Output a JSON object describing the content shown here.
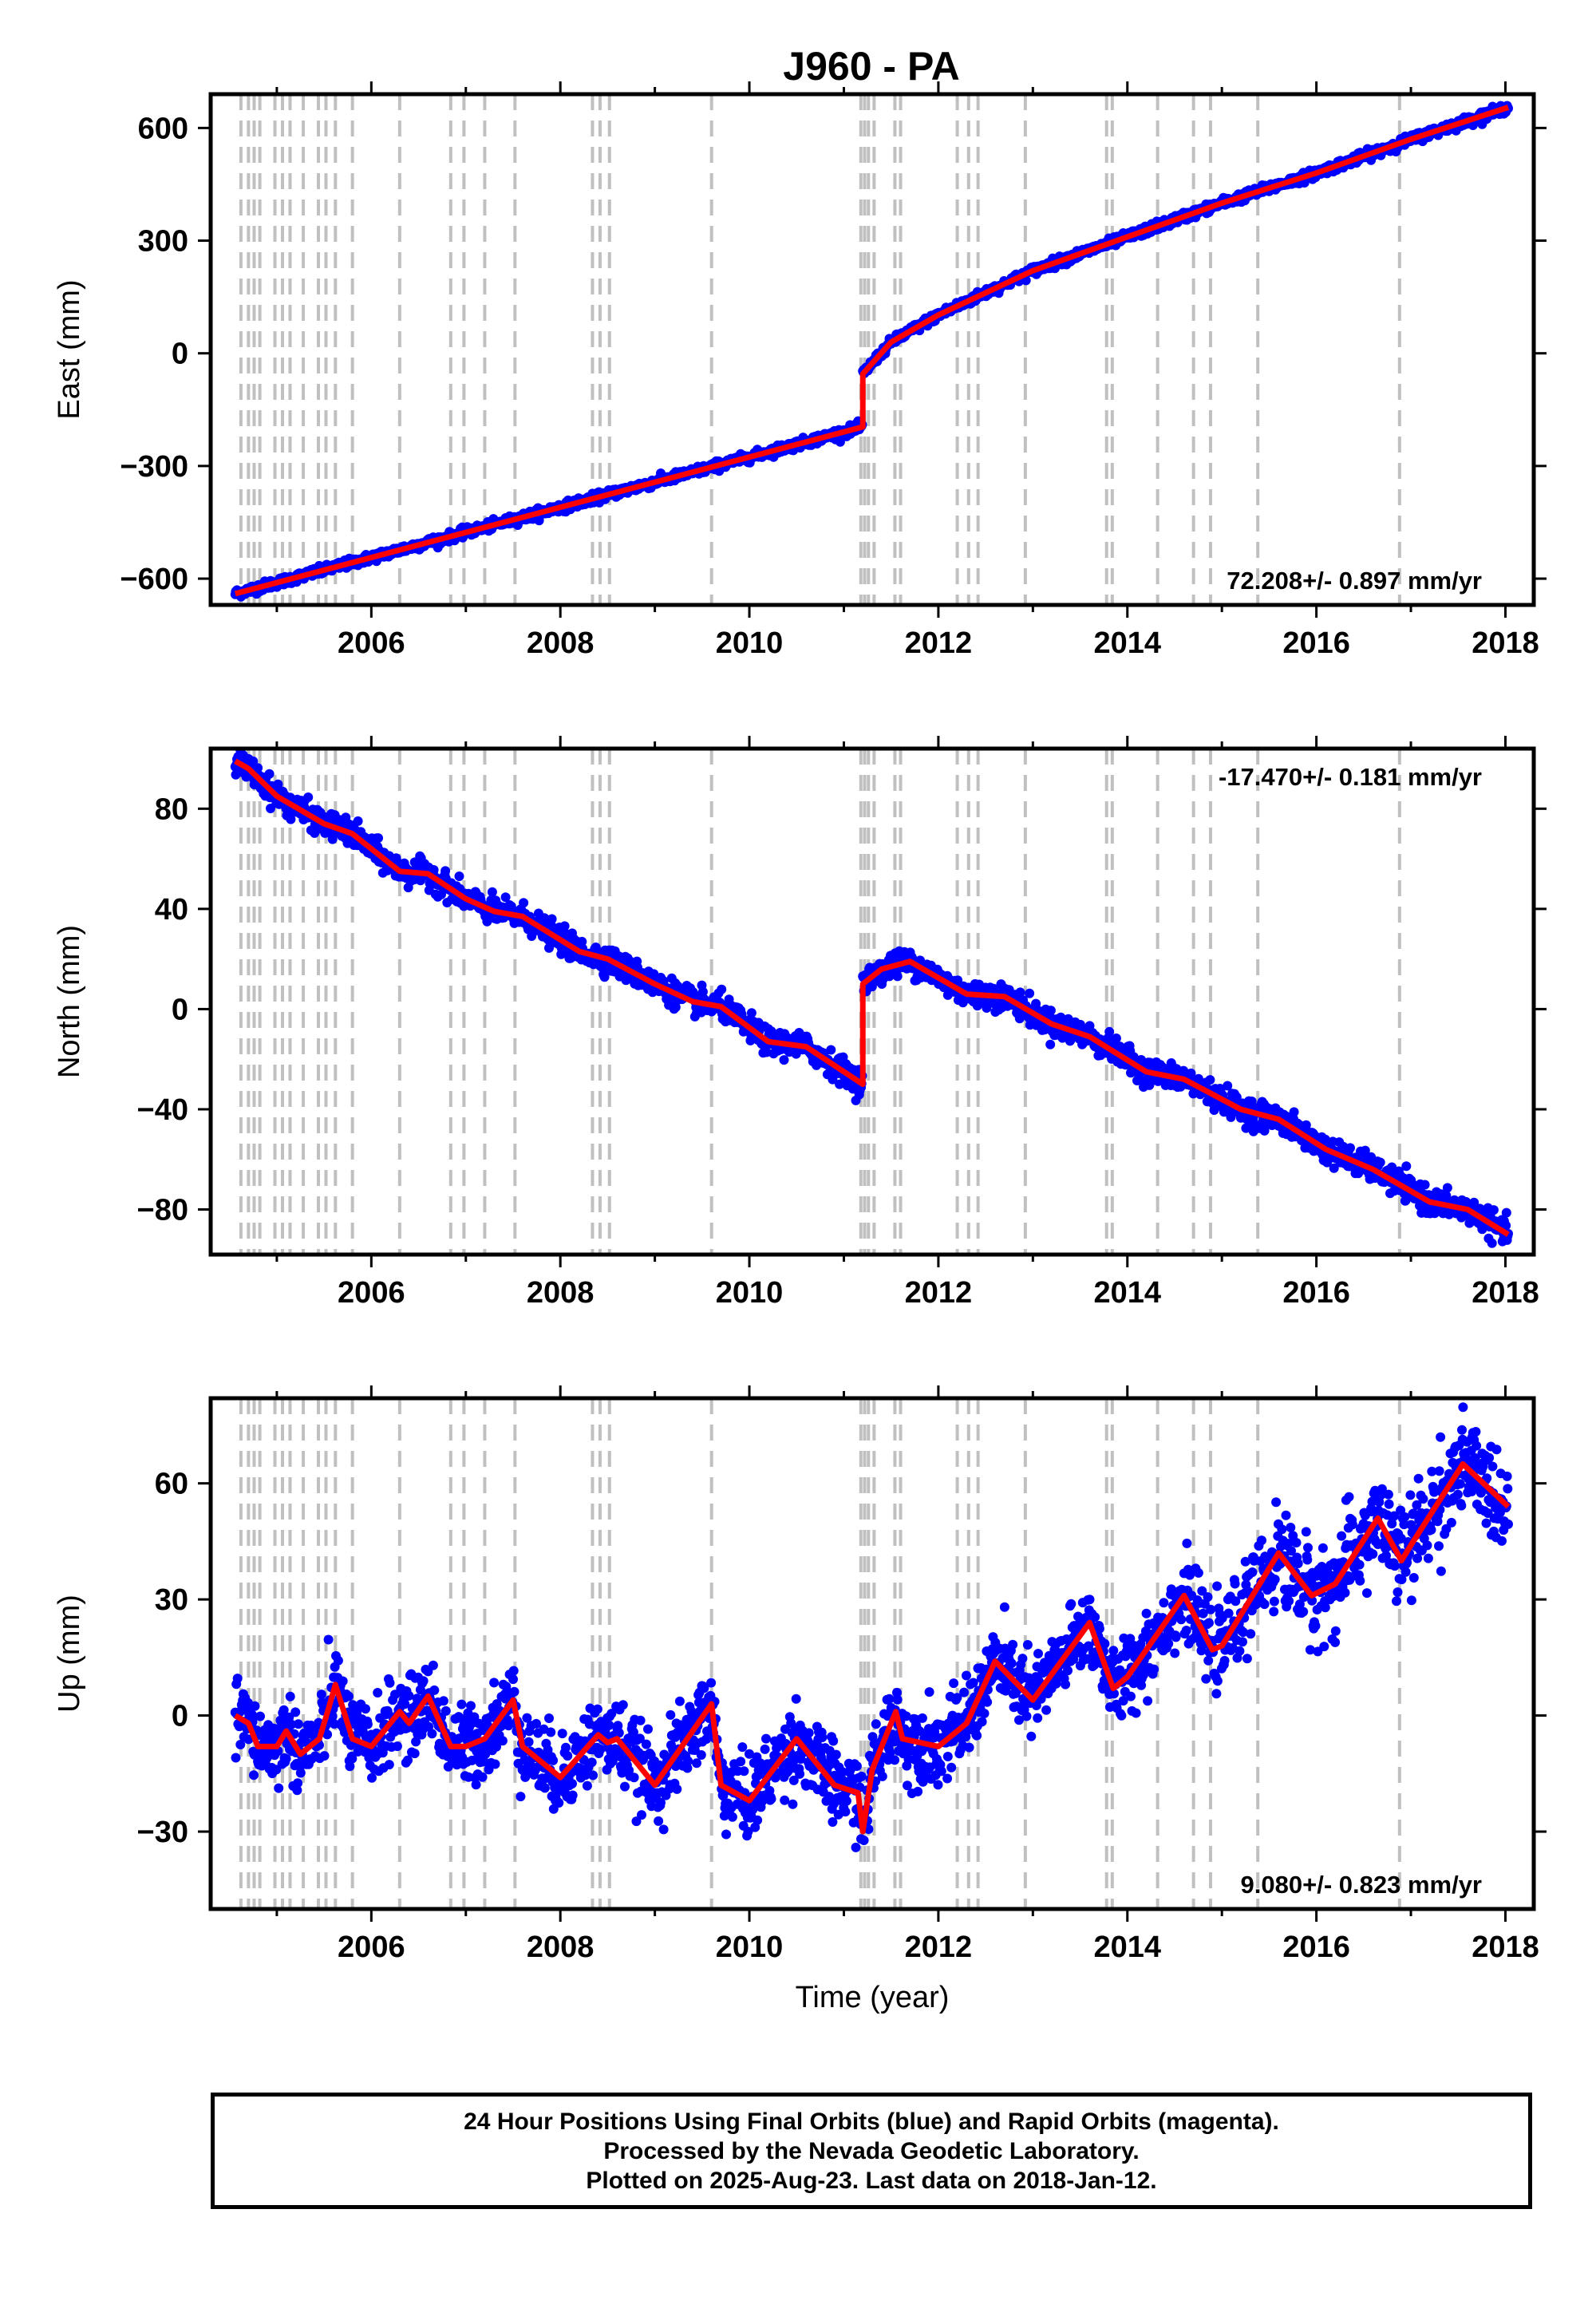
{
  "chart_data": {
    "type": "scatter",
    "title": "J960 - PA",
    "xlabel": "Time (year)",
    "x_range": [
      2004.3,
      2018.3
    ],
    "x_ticks": [
      2006,
      2008,
      2010,
      2012,
      2014,
      2016,
      2018
    ],
    "data_x_range": [
      2004.56,
      2018.03
    ],
    "colors": {
      "observations": "#0000ff",
      "model": "#ff0000",
      "events": "#c0c0c0"
    },
    "event_lines": [
      2004.62,
      2004.7,
      2004.76,
      2004.82,
      2004.98,
      2005.06,
      2005.14,
      2005.28,
      2005.44,
      2005.52,
      2005.62,
      2005.8,
      2006.3,
      2006.84,
      2006.98,
      2007.2,
      2007.52,
      2008.34,
      2008.42,
      2008.52,
      2009.6,
      2011.18,
      2011.22,
      2011.26,
      2011.32,
      2011.54,
      2011.6,
      2012.2,
      2012.32,
      2012.42,
      2012.92,
      2013.78,
      2013.84,
      2014.32,
      2014.7,
      2014.88,
      2015.38,
      2016.88
    ],
    "panels": [
      {
        "name": "east",
        "ylabel": "East (mm)",
        "ylim": [
          -670,
          690
        ],
        "y_ticks": [
          -600,
          -300,
          0,
          300,
          600
        ],
        "rate_text": "72.208+/- 0.897 mm/yr",
        "rate_position": "bottom-right",
        "model_line": [
          [
            2004.56,
            -640
          ],
          [
            2011.2,
            -196
          ],
          [
            2011.2,
            -55
          ],
          [
            2011.5,
            30
          ],
          [
            2012.0,
            102
          ],
          [
            2013.0,
            220
          ],
          [
            2014.0,
            310
          ],
          [
            2015.0,
            400
          ],
          [
            2016.0,
            480
          ],
          [
            2017.0,
            570
          ],
          [
            2018.03,
            655
          ]
        ],
        "scatter_noise_mm": 6
      },
      {
        "name": "north",
        "ylabel": "North (mm)",
        "ylim": [
          -98,
          104
        ],
        "y_ticks": [
          -80,
          -40,
          0,
          40,
          80
        ],
        "rate_text": "-17.470+/- 0.181 mm/yr",
        "rate_position": "top-right",
        "model_line": [
          [
            2004.56,
            99
          ],
          [
            2004.7,
            96
          ],
          [
            2005.0,
            85
          ],
          [
            2005.5,
            74
          ],
          [
            2005.8,
            70
          ],
          [
            2006.3,
            55
          ],
          [
            2006.6,
            54
          ],
          [
            2007.0,
            44
          ],
          [
            2007.3,
            39
          ],
          [
            2007.6,
            37
          ],
          [
            2008.2,
            23
          ],
          [
            2008.5,
            20
          ],
          [
            2009.0,
            10
          ],
          [
            2009.4,
            3
          ],
          [
            2009.7,
            1
          ],
          [
            2010.2,
            -13
          ],
          [
            2010.6,
            -15
          ],
          [
            2011.2,
            -30
          ],
          [
            2011.2,
            10
          ],
          [
            2011.4,
            16
          ],
          [
            2011.7,
            19
          ],
          [
            2012.3,
            6
          ],
          [
            2012.7,
            5
          ],
          [
            2013.2,
            -6
          ],
          [
            2013.6,
            -11
          ],
          [
            2014.2,
            -25
          ],
          [
            2014.6,
            -28
          ],
          [
            2015.2,
            -40
          ],
          [
            2015.6,
            -44
          ],
          [
            2016.1,
            -56
          ],
          [
            2016.6,
            -64
          ],
          [
            2017.2,
            -77
          ],
          [
            2017.6,
            -80
          ],
          [
            2018.03,
            -90
          ]
        ],
        "scatter_noise_mm": 2.5
      },
      {
        "name": "up",
        "ylabel": "Up (mm)",
        "ylim": [
          -50,
          82
        ],
        "y_ticks": [
          -30,
          0,
          30,
          60
        ],
        "rate_text": "9.080+/- 0.823 mm/yr",
        "rate_position": "bottom-right",
        "model_line": [
          [
            2004.56,
            0
          ],
          [
            2004.7,
            -2
          ],
          [
            2004.8,
            -8
          ],
          [
            2005.0,
            -8
          ],
          [
            2005.1,
            -4
          ],
          [
            2005.25,
            -10
          ],
          [
            2005.45,
            -6
          ],
          [
            2005.55,
            2
          ],
          [
            2005.62,
            8
          ],
          [
            2005.8,
            -6
          ],
          [
            2006.0,
            -8
          ],
          [
            2006.3,
            1
          ],
          [
            2006.4,
            -2
          ],
          [
            2006.6,
            5
          ],
          [
            2006.84,
            -8
          ],
          [
            2007.0,
            -8
          ],
          [
            2007.2,
            -6
          ],
          [
            2007.5,
            4
          ],
          [
            2007.6,
            -8
          ],
          [
            2008.0,
            -16
          ],
          [
            2008.4,
            -5
          ],
          [
            2008.5,
            -7
          ],
          [
            2008.6,
            -6
          ],
          [
            2009.0,
            -18
          ],
          [
            2009.6,
            3
          ],
          [
            2009.7,
            -18
          ],
          [
            2010.0,
            -22
          ],
          [
            2010.5,
            -6
          ],
          [
            2010.9,
            -18
          ],
          [
            2011.15,
            -20
          ],
          [
            2011.2,
            -30
          ],
          [
            2011.3,
            -14
          ],
          [
            2011.55,
            1
          ],
          [
            2011.62,
            -6
          ],
          [
            2012.0,
            -8
          ],
          [
            2012.3,
            -2
          ],
          [
            2012.6,
            14
          ],
          [
            2013.0,
            4
          ],
          [
            2013.6,
            24
          ],
          [
            2013.85,
            7
          ],
          [
            2014.0,
            10
          ],
          [
            2014.6,
            31
          ],
          [
            2014.9,
            17
          ],
          [
            2015.0,
            18
          ],
          [
            2015.6,
            42
          ],
          [
            2015.95,
            31
          ],
          [
            2016.2,
            34
          ],
          [
            2016.65,
            51
          ],
          [
            2016.9,
            40
          ],
          [
            2017.0,
            44
          ],
          [
            2017.55,
            65
          ],
          [
            2018.03,
            54
          ]
        ],
        "scatter_noise_mm": 5
      }
    ]
  },
  "caption": {
    "line1": "24 Hour Positions Using Final Orbits (blue) and Rapid Orbits (magenta).",
    "line2": "Processed by the Nevada Geodetic Laboratory.",
    "line3": "Plotted on 2025-Aug-23. Last data on 2018-Jan-12."
  }
}
